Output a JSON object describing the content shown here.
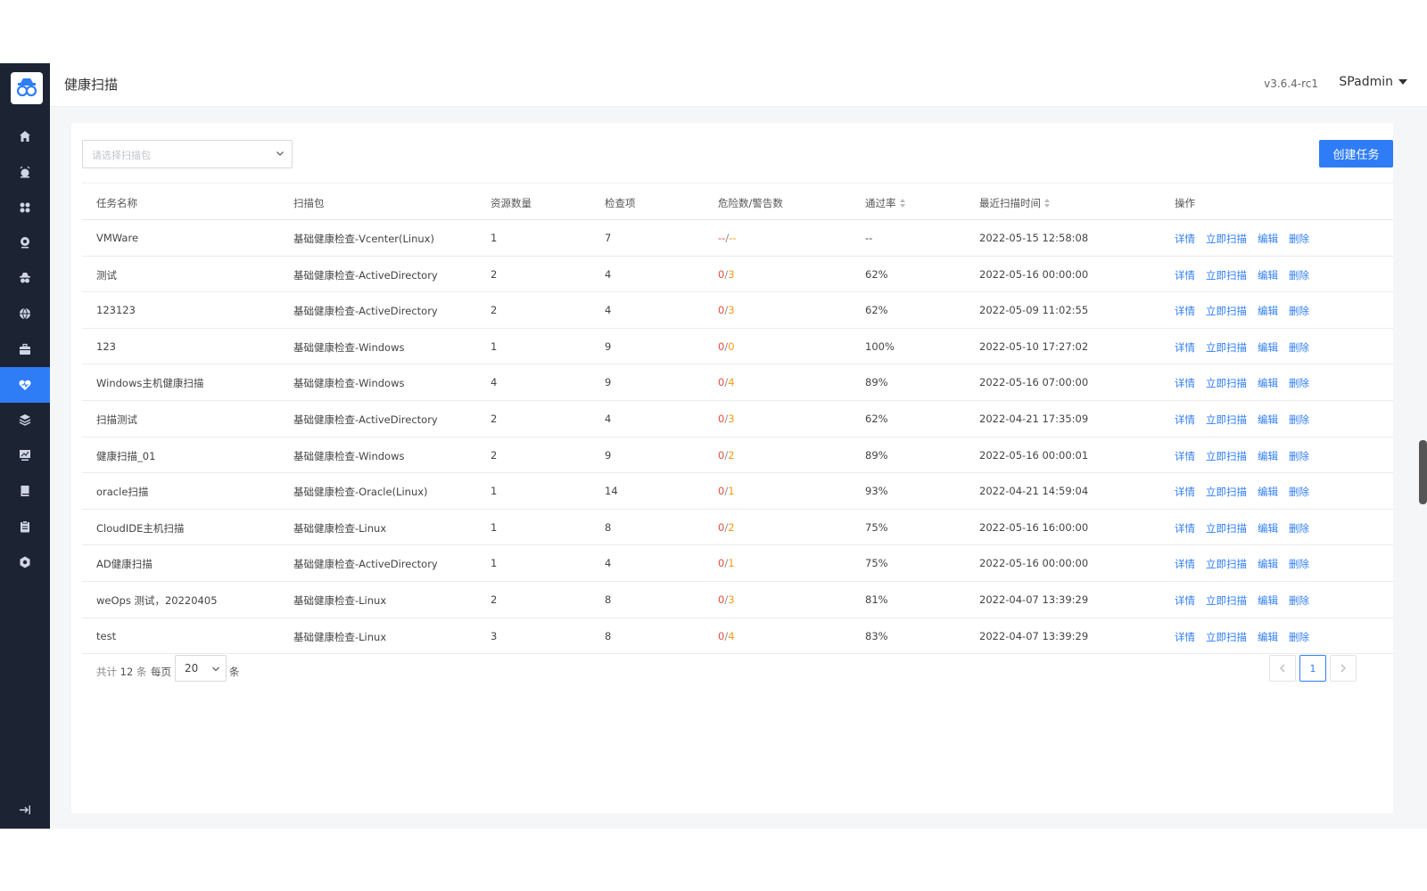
{
  "header": {
    "title": "健康扫描",
    "version": "v3.6.4-rc1",
    "user": "SPadmin"
  },
  "sidebar": {
    "icons": [
      "home-icon",
      "alarm-icon",
      "apps-icon",
      "monitor-icon",
      "agent-icon",
      "globe-icon",
      "briefcase-icon",
      "health-icon",
      "layers-icon",
      "chart-icon",
      "book-icon",
      "clipboard-icon",
      "settings-icon"
    ],
    "active": "health-icon",
    "collapse_icon": "collapse-icon"
  },
  "toolbar": {
    "select_placeholder": "请选择扫描包",
    "create_label": "创建任务"
  },
  "table": {
    "columns": [
      "任务名称",
      "扫描包",
      "资源数量",
      "检查项",
      "危险数/警告数",
      "通过率",
      "最近扫描时间",
      "操作"
    ],
    "actions": [
      "详情",
      "立即扫描",
      "编辑",
      "删除"
    ],
    "rows": [
      {
        "name": "VMWare",
        "package": "基础健康检查-Vcenter(Linux)",
        "resources": "1",
        "checks": "7",
        "danger": "--",
        "warn": "--",
        "pass": "--",
        "time": "2022-05-15 12:58:08"
      },
      {
        "name": "测试",
        "package": "基础健康检查-ActiveDirectory",
        "resources": "2",
        "checks": "4",
        "danger": "0",
        "warn": "3",
        "pass": "62%",
        "time": "2022-05-16 00:00:00"
      },
      {
        "name": "123123",
        "package": "基础健康检查-ActiveDirectory",
        "resources": "2",
        "checks": "4",
        "danger": "0",
        "warn": "3",
        "pass": "62%",
        "time": "2022-05-09 11:02:55"
      },
      {
        "name": "123",
        "package": "基础健康检查-Windows",
        "resources": "1",
        "checks": "9",
        "danger": "0",
        "warn": "0",
        "pass": "100%",
        "time": "2022-05-10 17:27:02"
      },
      {
        "name": "Windows主机健康扫描",
        "package": "基础健康检查-Windows",
        "resources": "4",
        "checks": "9",
        "danger": "0",
        "warn": "4",
        "pass": "89%",
        "time": "2022-05-16 07:00:00"
      },
      {
        "name": "扫描测试",
        "package": "基础健康检查-ActiveDirectory",
        "resources": "2",
        "checks": "4",
        "danger": "0",
        "warn": "3",
        "pass": "62%",
        "time": "2022-04-21 17:35:09"
      },
      {
        "name": "健康扫描_01",
        "package": "基础健康检查-Windows",
        "resources": "2",
        "checks": "9",
        "danger": "0",
        "warn": "2",
        "pass": "89%",
        "time": "2022-05-16 00:00:01"
      },
      {
        "name": "oracle扫描",
        "package": "基础健康检查-Oracle(Linux)",
        "resources": "1",
        "checks": "14",
        "danger": "0",
        "warn": "1",
        "pass": "93%",
        "time": "2022-04-21 14:59:04"
      },
      {
        "name": "CloudIDE主机扫描",
        "package": "基础健康检查-Linux",
        "resources": "1",
        "checks": "8",
        "danger": "0",
        "warn": "2",
        "pass": "75%",
        "time": "2022-05-16 16:00:00"
      },
      {
        "name": "AD健康扫描",
        "package": "基础健康检查-ActiveDirectory",
        "resources": "1",
        "checks": "4",
        "danger": "0",
        "warn": "1",
        "pass": "75%",
        "time": "2022-05-16 00:00:00"
      },
      {
        "name": "weOps 测试，20220405",
        "package": "基础健康检查-Linux",
        "resources": "2",
        "checks": "8",
        "danger": "0",
        "warn": "3",
        "pass": "81%",
        "time": "2022-04-07 13:39:29"
      },
      {
        "name": "test",
        "package": "基础健康检查-Linux",
        "resources": "3",
        "checks": "8",
        "danger": "0",
        "warn": "4",
        "pass": "83%",
        "time": "2022-04-07 13:39:29"
      }
    ]
  },
  "pagination": {
    "total_prefix": "共计",
    "total": "12",
    "total_suffix": "条",
    "per_page_label": "每页",
    "page_size": "20",
    "unit": "条",
    "current_page": "1"
  },
  "colors": {
    "accent": "#2f7df6",
    "danger": "#e74c3c",
    "warning": "#f39c12",
    "sidebar": "#1c2434"
  }
}
